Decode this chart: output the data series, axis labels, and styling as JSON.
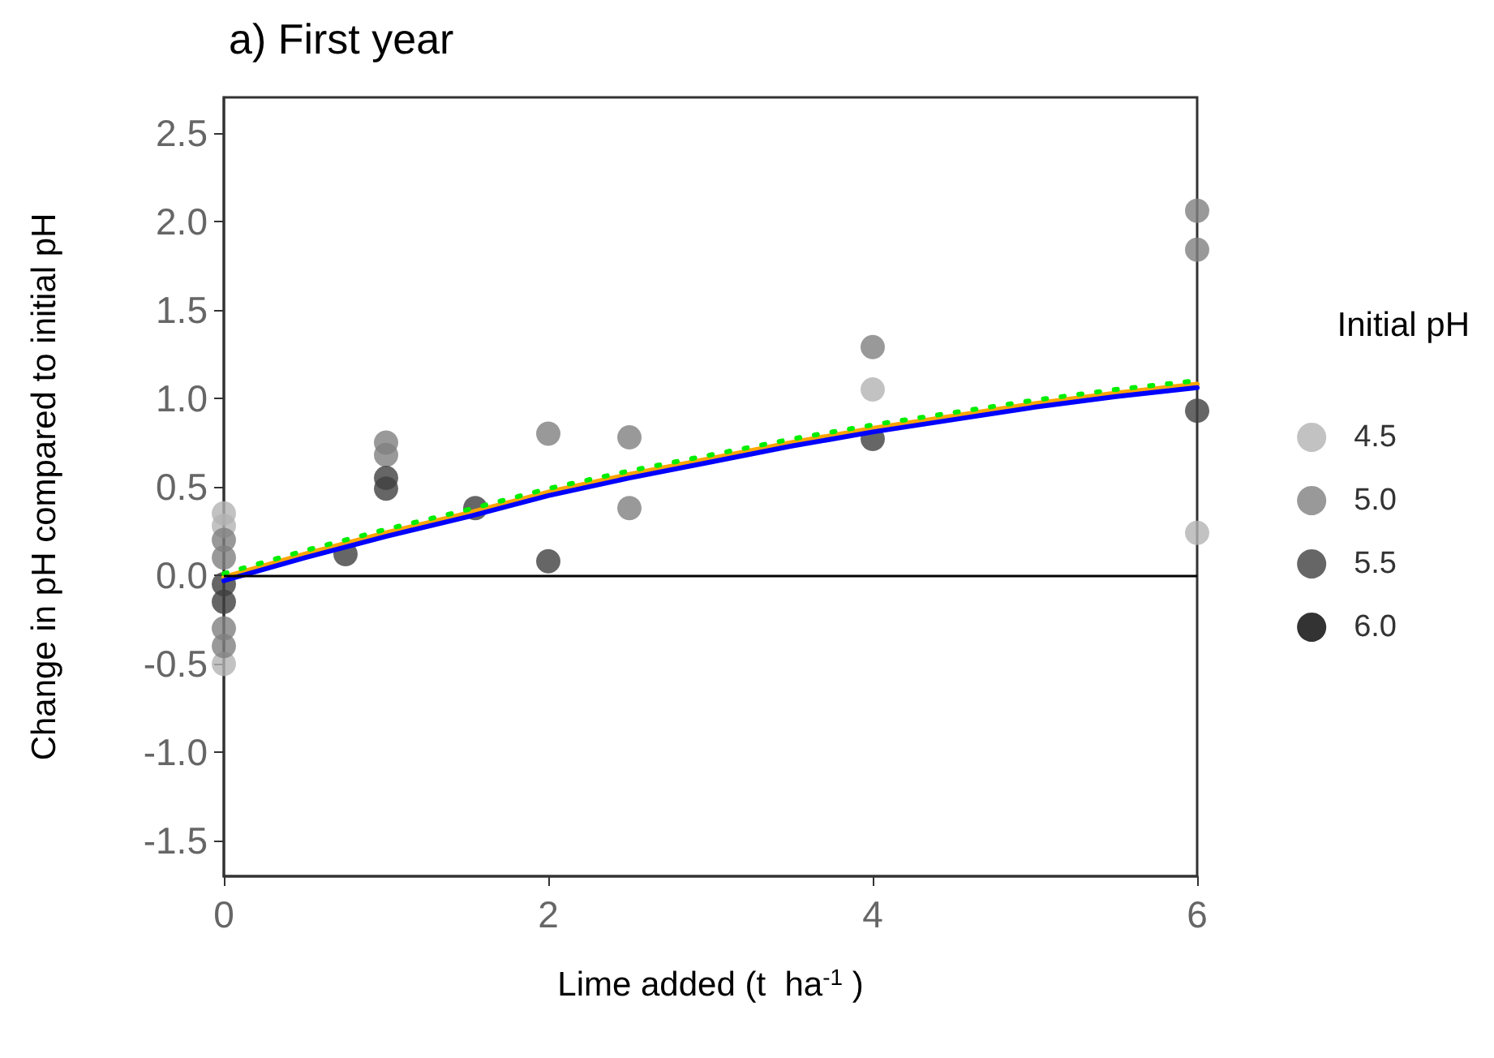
{
  "chart_data": {
    "type": "scatter",
    "title": "a) First year",
    "xlabel": "Lime added (t  ha$^{-1}$ )",
    "ylabel": "Change in pH compared to initial pH",
    "legend_title": "Initial pH",
    "legend": "right",
    "grid": false,
    "marker": "circle",
    "xlim": [
      0,
      6
    ],
    "xticks": [
      0,
      2,
      4,
      6
    ],
    "ylim": [
      -1.7,
      2.7
    ],
    "yticks": [
      {
        "value": -1.5,
        "label": "-1.5"
      },
      {
        "value": -1,
        "label": "-1.0"
      },
      {
        "value": -0.5,
        "label": "-0.5"
      },
      {
        "value": 0,
        "label": "0.0"
      },
      {
        "value": 0.5,
        "label": "0.5"
      },
      {
        "value": 1,
        "label": "1.0"
      },
      {
        "value": 1.5,
        "label": "1.5"
      },
      {
        "value": 2,
        "label": "2.0"
      },
      {
        "value": 2.5,
        "label": "2.5"
      }
    ],
    "ref_lines": [
      {
        "axis": "y",
        "value": 0,
        "color": "#000000"
      }
    ],
    "series": [
      {
        "name": "4.5",
        "color": "#b3b3b3",
        "x": [
          0,
          0,
          0,
          4,
          6
        ],
        "values": [
          0.35,
          0.28,
          -0.5,
          1.05,
          0.24
        ]
      },
      {
        "name": "5.0",
        "color": "#808080",
        "x": [
          0,
          0,
          0,
          0,
          1,
          1,
          2,
          2.5,
          2.5,
          4,
          6,
          6
        ],
        "values": [
          0.2,
          0.1,
          -0.3,
          -0.4,
          0.75,
          0.68,
          0.8,
          0.78,
          0.38,
          1.29,
          2.06,
          1.84
        ]
      },
      {
        "name": "5.5",
        "color": "#404040",
        "x": [
          0,
          0,
          0.75,
          1,
          1,
          1.55,
          2,
          4,
          6
        ],
        "values": [
          -0.05,
          -0.15,
          0.12,
          0.55,
          0.49,
          0.38,
          0.08,
          0.77,
          0.93
        ]
      },
      {
        "name": "6.0",
        "color": "#000000"
      },
      {
        "type": "line",
        "color": "#ffa500",
        "line_style": "solid",
        "marker": "none",
        "x": [
          0,
          0.5,
          1,
          1.5,
          2,
          2.5,
          3,
          3.5,
          4,
          4.5,
          5,
          5.5,
          6
        ],
        "values": [
          -0.01,
          0.12,
          0.24,
          0.35,
          0.47,
          0.57,
          0.66,
          0.75,
          0.83,
          0.9,
          0.97,
          1.03,
          1.08
        ]
      },
      {
        "type": "line",
        "color": "#00ee00",
        "line_style": "dotted",
        "marker": "none",
        "x": [
          0,
          0.5,
          1,
          1.5,
          2,
          2.5,
          3,
          3.5,
          4,
          4.5,
          5,
          5.5,
          6
        ],
        "values": [
          0.01,
          0.14,
          0.26,
          0.37,
          0.49,
          0.59,
          0.68,
          0.77,
          0.85,
          0.92,
          0.99,
          1.05,
          1.1
        ]
      },
      {
        "type": "line",
        "color": "#0000ff",
        "line_style": "solid",
        "marker": "none",
        "x": [
          0,
          0.5,
          1,
          1.5,
          2,
          2.5,
          3,
          3.5,
          4,
          4.5,
          5,
          5.5,
          6
        ],
        "values": [
          -0.03,
          0.1,
          0.22,
          0.33,
          0.45,
          0.55,
          0.64,
          0.73,
          0.81,
          0.88,
          0.95,
          1.01,
          1.06
        ]
      }
    ]
  }
}
